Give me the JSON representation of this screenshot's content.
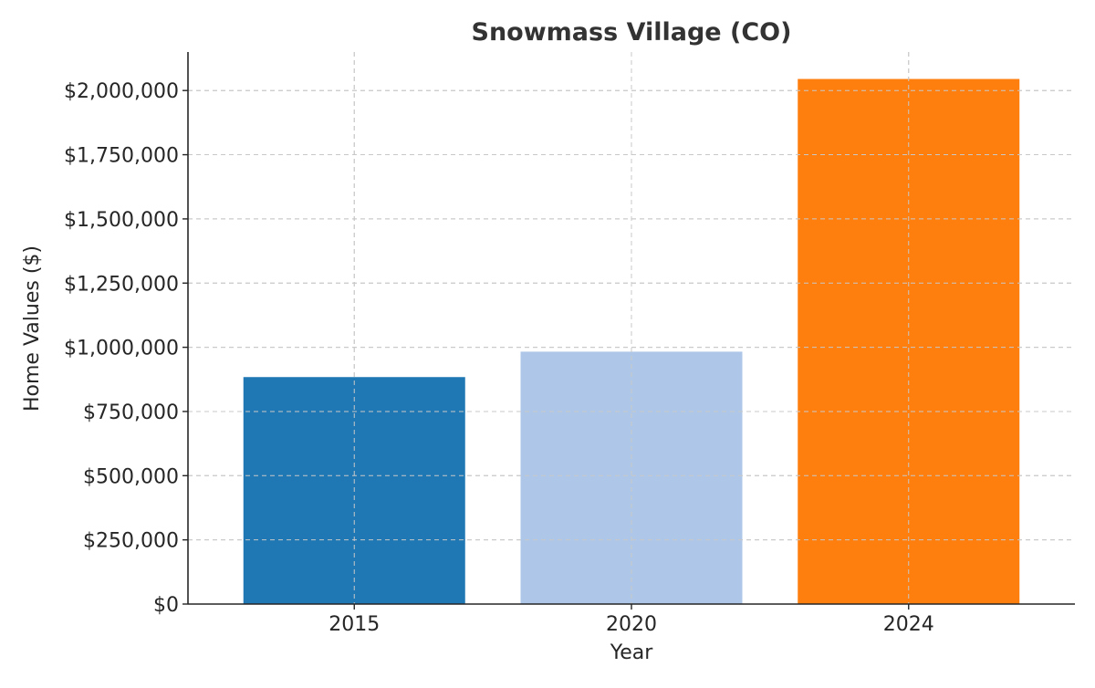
{
  "chart_data": {
    "type": "bar",
    "title": "Snowmass Village (CO)",
    "xlabel": "Year",
    "ylabel": "Home Values ($)",
    "categories": [
      "2015",
      "2020",
      "2024"
    ],
    "values": [
      884000,
      983000,
      2045000
    ],
    "colors": [
      "#1f77b4",
      "#aec7e8",
      "#ff7f0e"
    ],
    "ylim": [
      0,
      2150000
    ],
    "yticks": [
      0,
      250000,
      500000,
      750000,
      1000000,
      1250000,
      1500000,
      1750000,
      2000000
    ],
    "ytick_labels": [
      "$0",
      "$250,000",
      "$500,000",
      "$750,000",
      "$1,000,000",
      "$1,250,000",
      "$1,500,000",
      "$1,750,000",
      "$2,000,000"
    ],
    "grid": true,
    "legend": false
  }
}
